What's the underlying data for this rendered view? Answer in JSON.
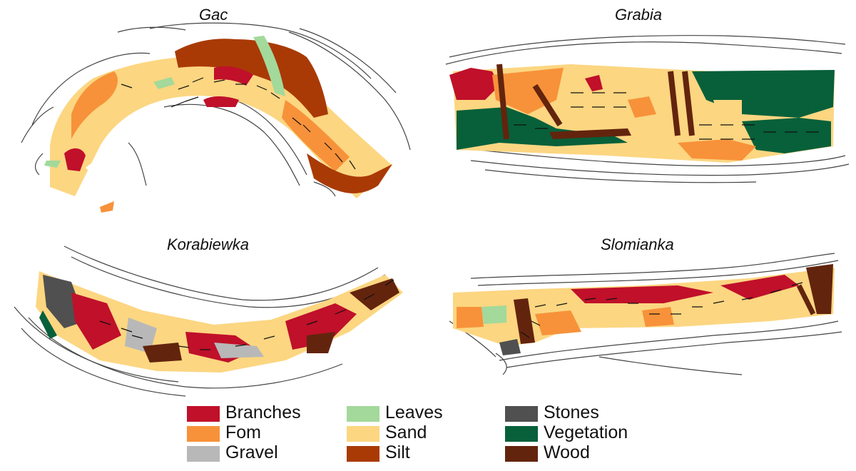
{
  "panels": [
    {
      "id": "gac",
      "title": "Gac"
    },
    {
      "id": "grabia",
      "title": "Grabia"
    },
    {
      "id": "korabiewka",
      "title": "Korabiewka"
    },
    {
      "id": "slomianka",
      "title": "Slomianka"
    }
  ],
  "legend": {
    "items": [
      {
        "label": "Branches",
        "color": "#c0102a"
      },
      {
        "label": "Fom",
        "color": "#f7923a"
      },
      {
        "label": "Gravel",
        "color": "#b8b8b8"
      },
      {
        "label": "Leaves",
        "color": "#a3d99b"
      },
      {
        "label": "Sand",
        "color": "#fcd681"
      },
      {
        "label": "Silt",
        "color": "#a93a06"
      },
      {
        "label": "Stones",
        "color": "#505050"
      },
      {
        "label": "Vegetation",
        "color": "#07603a"
      },
      {
        "label": "Wood",
        "color": "#63240d"
      }
    ]
  }
}
